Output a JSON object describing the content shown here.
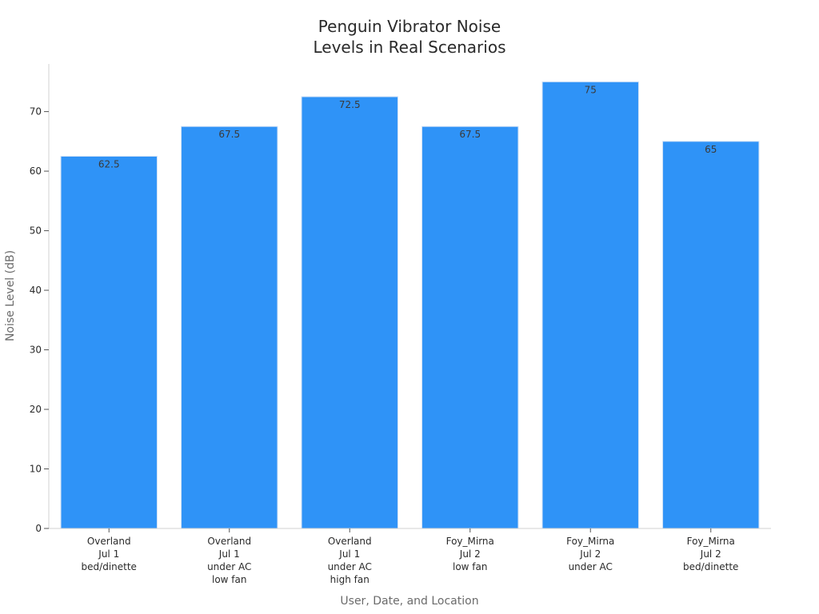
{
  "chart_data": {
    "type": "bar",
    "title": "Penguin Vibrator Noise\nLevels in Real Scenarios",
    "xlabel": "User, Date, and Location",
    "ylabel": "Noise Level (dB)",
    "categories": [
      "Overland\nJul 1\nbed/dinette",
      "Overland\nJul 1\nunder AC\nlow fan",
      "Overland\nJul 1\nunder AC\nhigh fan",
      "Foy_Mirna\nJul 2\nlow fan",
      "Foy_Mirna\nJul 2\nunder AC",
      "Foy_Mirna\nJul 2\nbed/dinette"
    ],
    "values": [
      62.5,
      67.5,
      72.5,
      67.5,
      75,
      65
    ],
    "data_labels": [
      "62.5",
      "67.5",
      "72.5",
      "67.5",
      "75",
      "65"
    ],
    "yticks": [
      0,
      10,
      20,
      30,
      40,
      50,
      60,
      70
    ],
    "ylim": [
      0,
      78
    ],
    "grid": false,
    "legend": "none",
    "bar_color": "#2f93f7",
    "bar_edge_color": "#cfe0f5"
  }
}
